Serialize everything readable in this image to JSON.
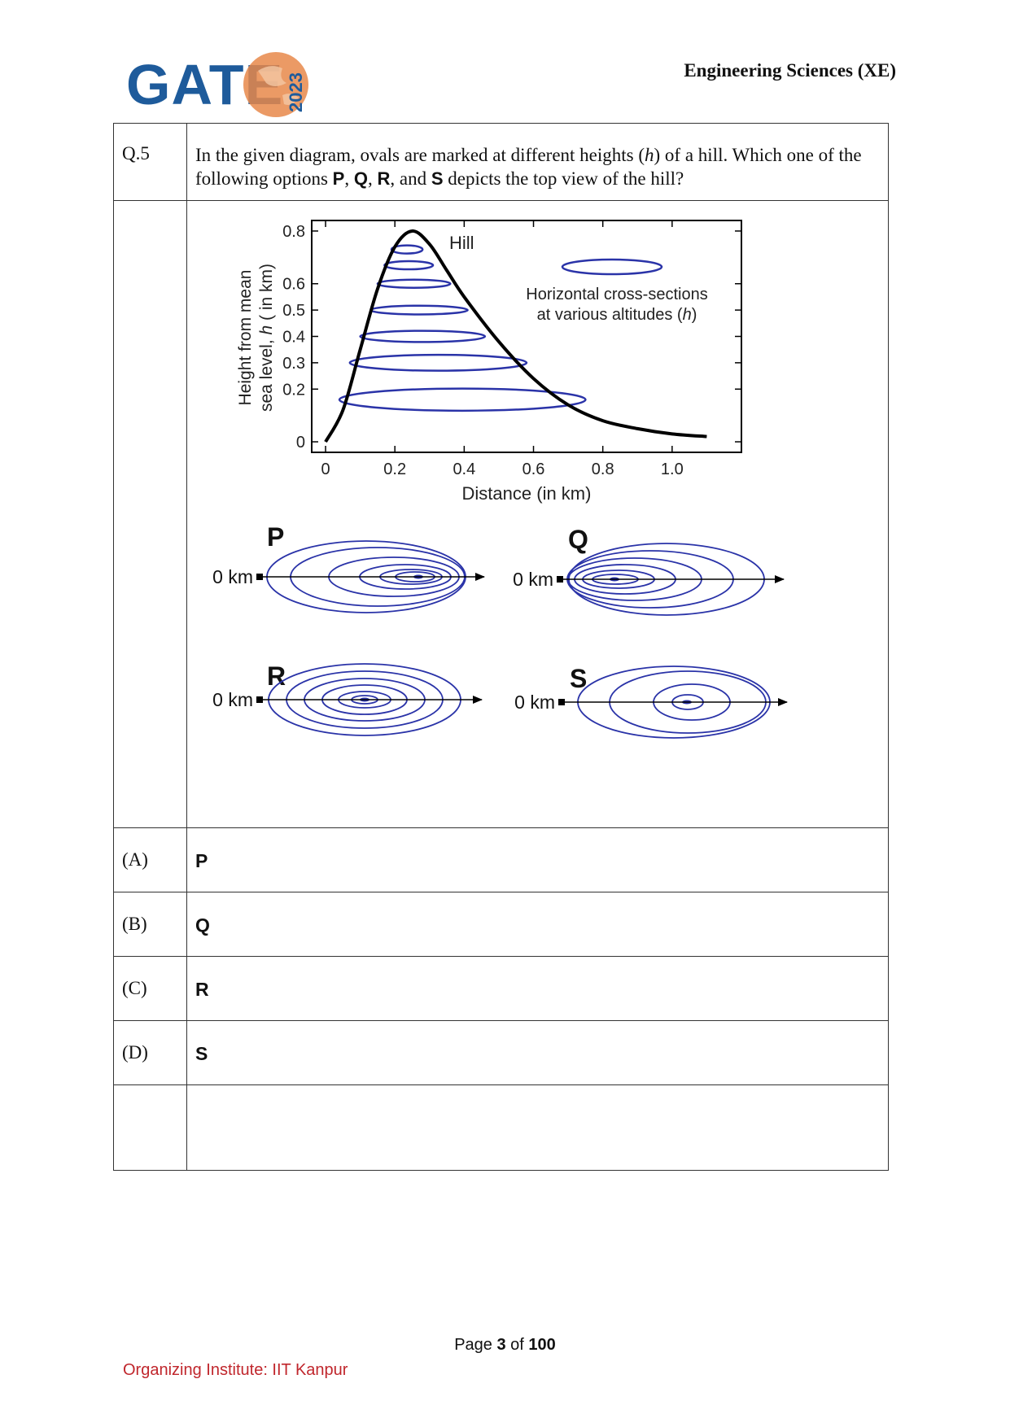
{
  "header": {
    "logo_text": "GATE",
    "logo_year": "2023",
    "subject": "Engineering Sciences (XE)"
  },
  "question": {
    "number": "Q.5",
    "text_part1": "In the given diagram, ovals are marked at different heights (",
    "text_h": "h",
    "text_part2": ") of a hill. Which one of the following options ",
    "opt_p": "P",
    "sep1": ", ",
    "opt_q": "Q",
    "sep2": ", ",
    "opt_r": "R",
    "sep3": ", and ",
    "opt_s": "S",
    "text_part3": " depicts the top view of the hill?"
  },
  "chart_data": {
    "type": "line",
    "series": [
      {
        "name": "Hill",
        "x": [
          0.0,
          0.05,
          0.1,
          0.15,
          0.2,
          0.25,
          0.3,
          0.35,
          0.4,
          0.5,
          0.6,
          0.7,
          0.8,
          0.9,
          1.0,
          1.1
        ],
        "y": [
          0.0,
          0.12,
          0.35,
          0.58,
          0.74,
          0.8,
          0.75,
          0.65,
          0.55,
          0.38,
          0.24,
          0.14,
          0.08,
          0.05,
          0.03,
          0.02
        ]
      }
    ],
    "cross_sections": [
      {
        "h": 0.16,
        "x_start": 0.04,
        "x_end": 0.75
      },
      {
        "h": 0.3,
        "x_start": 0.07,
        "x_end": 0.58
      },
      {
        "h": 0.4,
        "x_start": 0.1,
        "x_end": 0.46
      },
      {
        "h": 0.5,
        "x_start": 0.13,
        "x_end": 0.41
      },
      {
        "h": 0.6,
        "x_start": 0.15,
        "x_end": 0.36
      },
      {
        "h": 0.67,
        "x_start": 0.17,
        "x_end": 0.31
      },
      {
        "h": 0.73,
        "x_start": 0.19,
        "x_end": 0.28
      }
    ],
    "hill_label": "Hill",
    "legend_line1": "Horizontal cross-sections",
    "legend_line2a": "at various altitudes (",
    "legend_h": "h",
    "legend_line2b": ")",
    "xlabel": "Distance (in km)",
    "ylabel_line1": "Height from mean",
    "ylabel_line2a": "sea level, ",
    "ylabel_h": "h",
    "ylabel_line2b": " ( in km)",
    "xticks": [
      0,
      0.2,
      0.4,
      0.6,
      0.8,
      1.0
    ],
    "xtick_labels": [
      "0",
      "0.2",
      "0.4",
      "0.6",
      "0.8",
      "1.0"
    ],
    "yticks": [
      0,
      0.2,
      0.3,
      0.4,
      0.5,
      0.6,
      0.8
    ],
    "ytick_labels": [
      "0",
      "0.2",
      "0.3",
      "0.4",
      "0.5",
      "0.6",
      "0.8"
    ],
    "xlim": [
      -0.04,
      1.2
    ],
    "ylim": [
      -0.04,
      0.84
    ]
  },
  "topviews": {
    "origin_label": "0 km",
    "panels": [
      {
        "label": "P"
      },
      {
        "label": "Q"
      },
      {
        "label": "R"
      },
      {
        "label": "S"
      }
    ]
  },
  "options": [
    {
      "id": "(A)",
      "answer": "P"
    },
    {
      "id": "(B)",
      "answer": "Q"
    },
    {
      "id": "(C)",
      "answer": "R"
    },
    {
      "id": "(D)",
      "answer": "S"
    }
  ],
  "footer": {
    "page_prefix": "Page ",
    "page_current": "3",
    "page_mid": " of ",
    "page_total": "100",
    "organizer": "Organizing Institute: IIT Kanpur"
  },
  "colors": {
    "oval": "#2a33a8",
    "curve": "#000000",
    "footer": "#c0262c",
    "logo_blue": "#1e5b9b",
    "logo_orange": "#e8884a"
  }
}
